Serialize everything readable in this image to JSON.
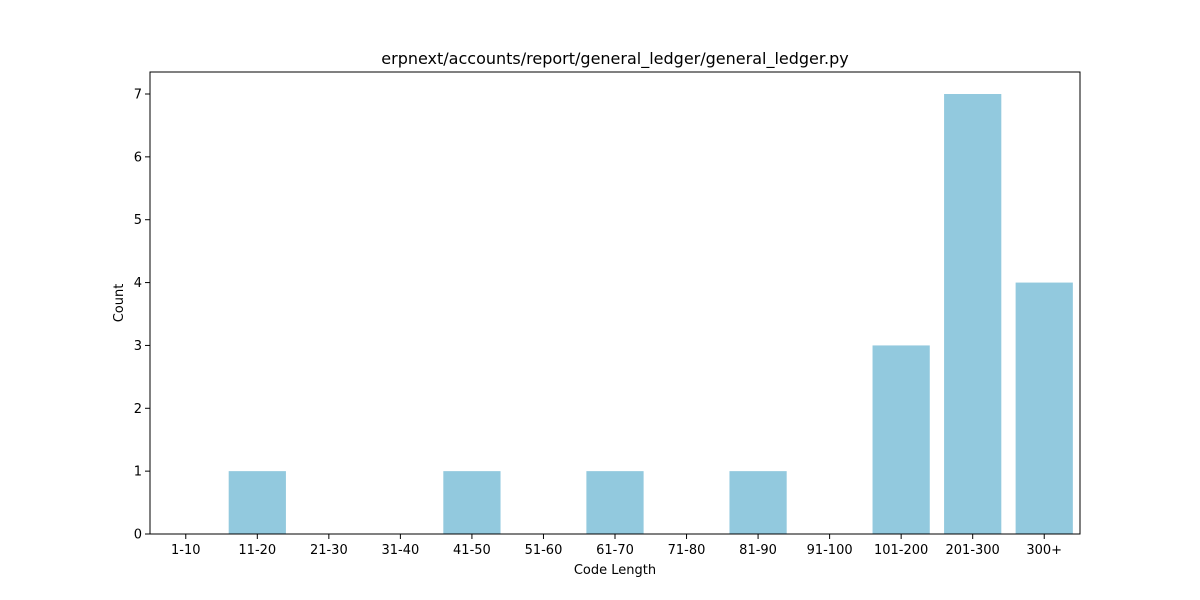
{
  "chart_data": {
    "type": "bar",
    "title": "erpnext/accounts/report/general_ledger/general_ledger.py",
    "xlabel": "Code Length",
    "ylabel": "Count",
    "categories": [
      "1-10",
      "11-20",
      "21-30",
      "31-40",
      "41-50",
      "51-60",
      "61-70",
      "71-80",
      "81-90",
      "91-100",
      "101-200",
      "201-300",
      "300+"
    ],
    "values": [
      0,
      1,
      0,
      0,
      1,
      0,
      1,
      0,
      1,
      0,
      3,
      7,
      4
    ],
    "ylim": [
      0,
      7.35
    ],
    "yticks": [
      0,
      1,
      2,
      3,
      4,
      5,
      6,
      7
    ],
    "bar_color": "#92c9de",
    "grid": false,
    "legend": "none"
  }
}
